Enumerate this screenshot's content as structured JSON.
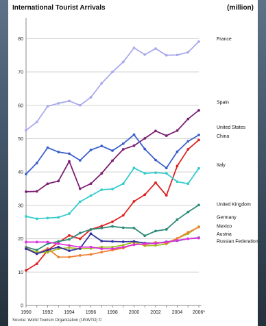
{
  "colors": {
    "background": "#2a3a48",
    "panel": "#ffffff",
    "axis": "#888888",
    "grid": "#d0d0d0"
  },
  "chart_data": {
    "type": "line",
    "title": "International Tourist Arrivals",
    "unit": "(million)",
    "source": "Source: World Tourism Organization (UNWTO) ©",
    "xlabel": "",
    "ylabel": "",
    "x": [
      1990,
      1991,
      1992,
      1993,
      1994,
      1995,
      1996,
      1997,
      1998,
      1999,
      2000,
      2001,
      2002,
      2003,
      2004,
      2005,
      2006
    ],
    "x_tick_labels": [
      "1990",
      "1992",
      "1994",
      "1996",
      "1998",
      "2000",
      "2002",
      "2004",
      "2006*"
    ],
    "ylim": [
      0,
      85
    ],
    "y_ticks": [
      0,
      10,
      20,
      30,
      40,
      50,
      60,
      70,
      80
    ],
    "grid": true,
    "legend": "right-end labels",
    "series": [
      {
        "name": "France",
        "color": "#a9a9ee",
        "values": [
          52.5,
          55,
          59.7,
          60.6,
          61.3,
          60,
          62.4,
          66.6,
          70,
          73,
          77.2,
          75.2,
          77,
          75,
          75.1,
          75.9,
          79.1
        ]
      },
      {
        "name": "Spain",
        "color": "#7c1f72",
        "values": [
          34.1,
          34.2,
          36.5,
          37.3,
          43.2,
          35,
          36.5,
          39.6,
          43.4,
          46.8,
          47.9,
          50.1,
          52.3,
          50.9,
          52.4,
          55.9,
          58.5
        ]
      },
      {
        "name": "United States",
        "color": "#3a5fcd",
        "values": [
          39.4,
          42.7,
          47.3,
          46,
          45.5,
          43.5,
          46.6,
          47.8,
          46.4,
          48.5,
          51.2,
          46.9,
          43.6,
          41.2,
          46.1,
          49.2,
          51.1
        ]
      },
      {
        "name": "China",
        "color": "#dd2222",
        "values": [
          10.5,
          12.5,
          16.5,
          18.9,
          21,
          20,
          22.8,
          23.8,
          25.1,
          27,
          31.2,
          33.2,
          36.8,
          33,
          41.8,
          46.8,
          49.6
        ]
      },
      {
        "name": "Italy",
        "color": "#33cccc",
        "values": [
          26.7,
          26,
          26.2,
          26.4,
          27.5,
          31.1,
          32.9,
          34.7,
          34.9,
          36.5,
          41.2,
          39.6,
          39.8,
          39.6,
          37.1,
          36.5,
          41.1
        ]
      },
      {
        "name": "United Kingdom",
        "color": "#2e8b79",
        "values": [
          17.5,
          16.6,
          18.5,
          19.2,
          19.8,
          21.7,
          22.8,
          23.2,
          23.7,
          23.3,
          23.2,
          20.9,
          22.3,
          22.8,
          25.7,
          28,
          30.1
        ]
      },
      {
        "name": "Germany",
        "color": "#a0c020",
        "values": [
          17,
          16,
          15.9,
          17,
          17.3,
          17,
          17.1,
          17.5,
          17.5,
          18.1,
          19,
          17.9,
          18,
          18.4,
          20.1,
          21.5,
          23.6
        ]
      },
      {
        "name": "Mexico",
        "color": "#f08030",
        "values": [
          17.2,
          15.5,
          17.1,
          14.5,
          14.5,
          15,
          15.3,
          16,
          16.6,
          17.2,
          18.4,
          18.2,
          18.9,
          18.7,
          20.1,
          21.9,
          23.5
        ]
      },
      {
        "name": "Austria",
        "color": "#3030a0",
        "values": [
          17,
          15.5,
          16.6,
          17.5,
          16.4,
          17.1,
          21.5,
          19.3,
          19.2,
          19.1,
          19.2,
          18.7,
          18.6,
          19.1,
          19.4,
          20,
          20.3
        ]
      },
      {
        "name": "Russian Federation",
        "color": "#dd33dd",
        "values": [
          19,
          19,
          19,
          18.5,
          18,
          17.5,
          17.5,
          17,
          17,
          17.5,
          18.2,
          18.5,
          18.6,
          19,
          19.5,
          20,
          20.2
        ]
      }
    ]
  }
}
